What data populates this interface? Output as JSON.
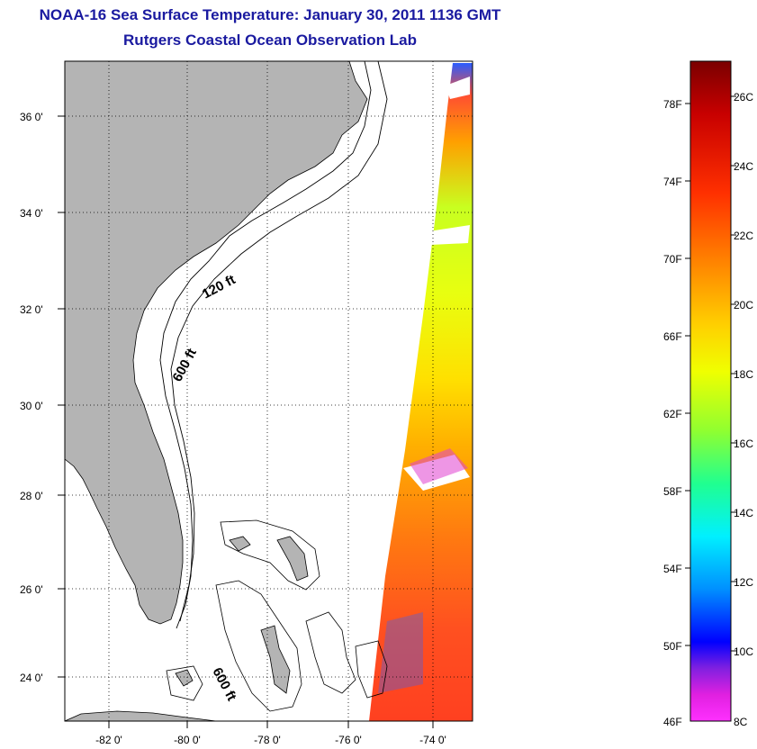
{
  "header": {
    "title": "NOAA-16 Sea Surface Temperature:  January 30, 2011 1136 GMT",
    "subtitle": "Rutgers Coastal Ocean Observation Lab"
  },
  "map": {
    "lon_range": [
      -83,
      -73
    ],
    "lat_range": [
      23,
      37
    ],
    "lat_ticks": [
      {
        "value": 36,
        "label": "36 0'"
      },
      {
        "value": 34,
        "label": "34 0'"
      },
      {
        "value": 32,
        "label": "32 0'"
      },
      {
        "value": 30,
        "label": "30 0'"
      },
      {
        "value": 28,
        "label": "28 0'"
      },
      {
        "value": 26,
        "label": "26 0'"
      },
      {
        "value": 24,
        "label": "24 0'"
      }
    ],
    "lon_ticks": [
      {
        "value": -82,
        "label": "-82 0'"
      },
      {
        "value": -80,
        "label": "-80 0'"
      },
      {
        "value": -78,
        "label": "-78 0'"
      },
      {
        "value": -76,
        "label": "-76 0'"
      },
      {
        "value": -74,
        "label": "-74 0'"
      }
    ],
    "contour_labels": [
      "120 ft",
      "600 ft",
      "600 ft"
    ],
    "land_color": "#b4b4b4",
    "grid": "dotted"
  },
  "colorbar": {
    "range_F": [
      46,
      80
    ],
    "range_C": [
      8,
      27
    ],
    "f_labels": [
      "78F",
      "74F",
      "70F",
      "66F",
      "62F",
      "58F",
      "54F",
      "50F",
      "46F"
    ],
    "c_labels": [
      "26C",
      "24C",
      "22C",
      "20C",
      "18C",
      "16C",
      "14C",
      "12C",
      "10C",
      "8C"
    ]
  }
}
